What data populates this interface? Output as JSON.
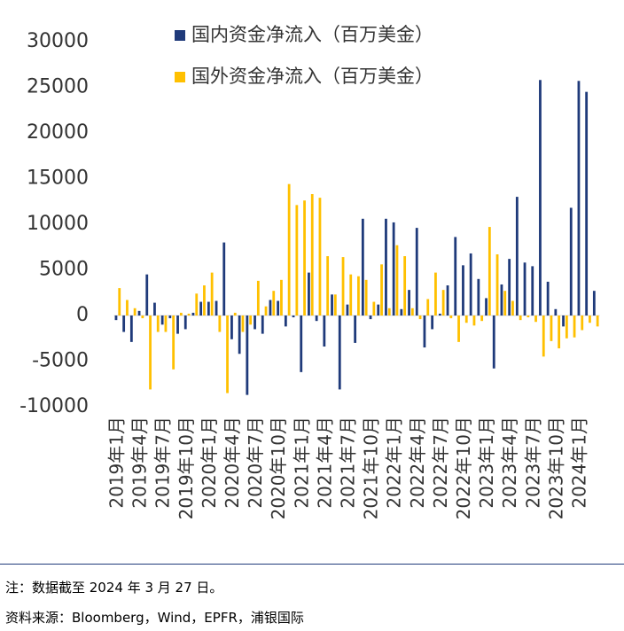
{
  "chart_data": {
    "type": "bar",
    "categories": [
      "2019年1月",
      null,
      null,
      "2019年4月",
      null,
      null,
      "2019年7月",
      null,
      null,
      "2019年10月",
      null,
      null,
      "2020年1月",
      null,
      null,
      "2020年4月",
      null,
      null,
      "2020年7月",
      null,
      null,
      "2020年10月",
      null,
      null,
      "2021年1月",
      null,
      null,
      "2021年4月",
      null,
      null,
      "2021年7月",
      null,
      null,
      "2021年10月",
      null,
      null,
      "2022年1月",
      null,
      null,
      "2022年4月",
      null,
      null,
      "2022年7月",
      null,
      null,
      "2022年10月",
      null,
      null,
      "2023年1月",
      null,
      null,
      "2023年4月",
      null,
      null,
      "2023年7月",
      null,
      null,
      "2023年10月",
      null,
      null,
      "2024年1月",
      null,
      null
    ],
    "series": [
      {
        "name": "国内资金净流入（百万美金）",
        "color": "#1f3a7a",
        "values": [
          -500,
          -1800,
          -2900,
          500,
          4500,
          1400,
          -1000,
          -300,
          -2000,
          -1500,
          300,
          1500,
          1500,
          1600,
          8000,
          -2600,
          -4200,
          -8700,
          -1500,
          -2000,
          1700,
          1600,
          -1200,
          -200,
          -6200,
          4700,
          -600,
          -3400,
          2300,
          -8100,
          1200,
          -3000,
          10600,
          -400,
          1200,
          10600,
          10200,
          700,
          2800,
          9600,
          -3500,
          -1500,
          200,
          3300,
          8600,
          5500,
          6800,
          4000,
          1900,
          -5800,
          3400,
          6200,
          13000,
          5800,
          5400,
          25800,
          3700,
          700,
          -1200,
          11800,
          25700,
          24500,
          2700
        ]
      },
      {
        "name": "国外资金净流入（百万美金）",
        "color": "#ffc000",
        "values": [
          3000,
          1700,
          800,
          -300,
          -8100,
          -1800,
          -1800,
          -5900,
          300,
          200,
          2400,
          3300,
          4700,
          -1800,
          -8500,
          300,
          -1800,
          -1000,
          3800,
          1000,
          2700,
          3900,
          14400,
          12100,
          12600,
          13300,
          12900,
          6500,
          2300,
          6400,
          4500,
          4300,
          3900,
          1500,
          5600,
          800,
          7700,
          6500,
          800,
          -400,
          1800,
          4700,
          2800,
          -300,
          -2900,
          -800,
          -1100,
          -600,
          9700,
          6700,
          2700,
          1600,
          -500,
          -200,
          -700,
          -4500,
          -2800,
          -3600,
          -2500,
          -2400,
          -1600,
          -800,
          -1200
        ]
      }
    ],
    "ylim": [
      -10000,
      30000
    ],
    "yticks": [
      -10000,
      -5000,
      0,
      5000,
      10000,
      15000,
      20000,
      25000,
      30000
    ],
    "legend": "top",
    "notes": [
      "注：数据截至 2024 年 3 月 27 日。",
      "资料来源：Bloomberg，Wind，EPFR，浦银国际"
    ]
  }
}
